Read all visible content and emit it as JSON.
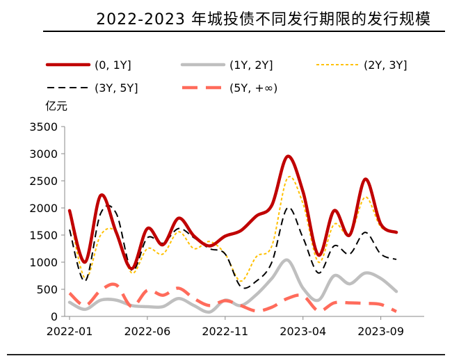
{
  "chart_data": {
    "type": "line",
    "title": "2022-2023 年城投债不同发行期限的发行规模",
    "ylabel": "亿元",
    "ylim": [
      0,
      3500
    ],
    "yticks": [
      "0",
      "500",
      "1000",
      "1500",
      "2000",
      "2500",
      "3000",
      "3500"
    ],
    "xticks": [
      "2022-01",
      "2022-06",
      "2022-11",
      "2023-04",
      "2023-09"
    ],
    "x": [
      "2022-01",
      "2022-02",
      "2022-03",
      "2022-04",
      "2022-05",
      "2022-06",
      "2022-07",
      "2022-08",
      "2022-09",
      "2022-10",
      "2022-11",
      "2022-12",
      "2023-01",
      "2023-02",
      "2023-03",
      "2023-04",
      "2023-05",
      "2023-06",
      "2023-07",
      "2023-08",
      "2023-09",
      "2023-10"
    ],
    "legend_placement": "top",
    "grid": false,
    "series": [
      {
        "name": "(0, 1Y]",
        "color": "#c00000",
        "style": "solid-thick",
        "values": [
          1950,
          1000,
          2230,
          1550,
          880,
          1620,
          1320,
          1810,
          1480,
          1300,
          1480,
          1580,
          1850,
          2050,
          2950,
          2300,
          1130,
          1950,
          1500,
          2530,
          1700,
          1550
        ]
      },
      {
        "name": "(1Y, 2Y]",
        "color": "#bfbfbf",
        "style": "solid-thick",
        "values": [
          260,
          130,
          300,
          300,
          200,
          180,
          180,
          330,
          200,
          80,
          300,
          200,
          400,
          700,
          1040,
          520,
          300,
          750,
          600,
          800,
          700,
          460
        ]
      },
      {
        "name": "(2Y, 3Y]",
        "color": "#ffc000",
        "style": "short-dash",
        "values": [
          1900,
          700,
          1500,
          1550,
          800,
          1250,
          1150,
          1560,
          1250,
          1380,
          1150,
          650,
          1100,
          1300,
          2550,
          2080,
          1000,
          1700,
          1500,
          2200,
          1650,
          1560
        ]
      },
      {
        "name": "(3Y, 5Y]",
        "color": "#000000",
        "style": "long-dash",
        "values": [
          1600,
          650,
          1900,
          1900,
          850,
          1450,
          1350,
          1620,
          1450,
          1250,
          1150,
          550,
          650,
          1000,
          2000,
          1450,
          800,
          1300,
          1150,
          1550,
          1150,
          1050
        ]
      },
      {
        "name": "(5Y, +∞)",
        "color": "#ff6b5b",
        "style": "wide-dash",
        "values": [
          430,
          200,
          480,
          580,
          180,
          480,
          390,
          520,
          330,
          200,
          290,
          200,
          100,
          170,
          330,
          380,
          100,
          250,
          250,
          240,
          220,
          90
        ]
      }
    ]
  }
}
